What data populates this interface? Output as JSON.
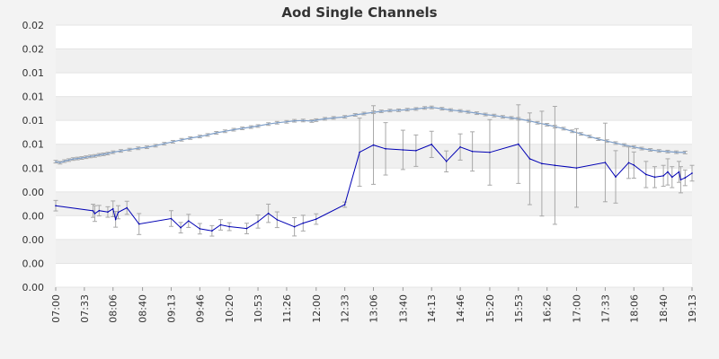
{
  "chart_data": {
    "type": "line",
    "title": "Aod Single Channels",
    "xlabel": "",
    "ylabel": "",
    "x_ticks": [
      "07:00",
      "07:33",
      "08:06",
      "08:40",
      "09:13",
      "09:46",
      "10:20",
      "10:53",
      "11:26",
      "12:00",
      "12:33",
      "13:06",
      "13:40",
      "14:13",
      "14:46",
      "15:20",
      "15:53",
      "16:26",
      "17:00",
      "17:33",
      "18:06",
      "18:40",
      "19:13"
    ],
    "y_ticks": [
      "0.00",
      "0.00",
      "0.00",
      "0.00",
      "0.00",
      "0.01",
      "0.01",
      "0.01",
      "0.01",
      "0.01",
      "0.02",
      "0.02"
    ],
    "x_range": [
      "07:00",
      "19:13"
    ],
    "ylim": [
      0,
      0.02
    ],
    "grid": "horizontal bands",
    "legend": "none",
    "series": [
      {
        "color": "#7f9fc8",
        "points": [
          [
            "07:00",
            0.00958,
            0.0001
          ],
          [
            "07:05",
            0.0095,
            0.0001
          ],
          [
            "07:10",
            0.00962,
            0.0001
          ],
          [
            "07:15",
            0.0097,
            0.0001
          ],
          [
            "07:20",
            0.00978,
            0.0001
          ],
          [
            "07:25",
            0.00982,
            0.0001
          ],
          [
            "07:30",
            0.00986,
            0.0001
          ],
          [
            "07:35",
            0.00992,
            0.0001
          ],
          [
            "07:40",
            0.00998,
            0.0001
          ],
          [
            "07:45",
            0.01002,
            0.0001
          ],
          [
            "07:50",
            0.0101,
            0.0001
          ],
          [
            "07:55",
            0.01014,
            0.0001
          ],
          [
            "08:00",
            0.0102,
            0.0001
          ],
          [
            "08:06",
            0.0103,
            0.0001
          ],
          [
            "08:15",
            0.0104,
            0.0001
          ],
          [
            "08:25",
            0.0105,
            0.0001
          ],
          [
            "08:35",
            0.0106,
            0.0001
          ],
          [
            "08:45",
            0.01068,
            0.0001
          ],
          [
            "08:55",
            0.0108,
            0.0001
          ],
          [
            "09:05",
            0.01095,
            0.0001
          ],
          [
            "09:15",
            0.0111,
            0.0001
          ],
          [
            "09:25",
            0.01125,
            0.0001
          ],
          [
            "09:35",
            0.01138,
            0.0001
          ],
          [
            "09:46",
            0.0115,
            0.0001
          ],
          [
            "09:55",
            0.01162,
            0.0001
          ],
          [
            "10:05",
            0.01178,
            0.0001
          ],
          [
            "10:15",
            0.0119,
            0.0001
          ],
          [
            "10:25",
            0.01202,
            0.0001
          ],
          [
            "10:35",
            0.01212,
            0.0001
          ],
          [
            "10:45",
            0.01222,
            0.0001
          ],
          [
            "10:53",
            0.0123,
            0.0001
          ],
          [
            "11:05",
            0.01245,
            0.0001
          ],
          [
            "11:15",
            0.01255,
            0.0001
          ],
          [
            "11:26",
            0.01262,
            0.0001
          ],
          [
            "11:35",
            0.0127,
            0.0001
          ],
          [
            "11:45",
            0.01272,
            0.0001
          ],
          [
            "11:55",
            0.01268,
            0.0001
          ],
          [
            "12:00",
            0.01275,
            0.0001
          ],
          [
            "12:10",
            0.01285,
            0.0001
          ],
          [
            "12:20",
            0.01292,
            0.0001
          ],
          [
            "12:33",
            0.013,
            0.0001
          ],
          [
            "12:45",
            0.01315,
            0.0001
          ],
          [
            "12:55",
            0.01325,
            0.0001
          ],
          [
            "13:06",
            0.01335,
            0.0001
          ],
          [
            "13:15",
            0.01342,
            0.0001
          ],
          [
            "13:25",
            0.01348,
            0.0001
          ],
          [
            "13:35",
            0.0135,
            0.0001
          ],
          [
            "13:45",
            0.01355,
            0.0001
          ],
          [
            "13:55",
            0.0136,
            0.0001
          ],
          [
            "14:05",
            0.01368,
            0.0001
          ],
          [
            "14:13",
            0.01372,
            0.0001
          ],
          [
            "14:25",
            0.01362,
            0.0001
          ],
          [
            "14:35",
            0.01352,
            0.0001
          ],
          [
            "14:46",
            0.01345,
            0.0001
          ],
          [
            "14:55",
            0.01338,
            0.0001
          ],
          [
            "15:05",
            0.01328,
            0.0001
          ],
          [
            "15:15",
            0.01318,
            0.0001
          ],
          [
            "15:25",
            0.0131,
            0.0001
          ],
          [
            "15:35",
            0.013,
            0.0001
          ],
          [
            "15:45",
            0.01292,
            0.0001
          ],
          [
            "15:53",
            0.01285,
            0.0001
          ],
          [
            "16:05",
            0.0127,
            0.0001
          ],
          [
            "16:15",
            0.01255,
            0.0001
          ],
          [
            "16:26",
            0.0124,
            0.0001
          ],
          [
            "16:35",
            0.01225,
            0.0001
          ],
          [
            "16:45",
            0.0121,
            0.0001
          ],
          [
            "16:55",
            0.0119,
            0.0001
          ],
          [
            "17:05",
            0.0117,
            0.0001
          ],
          [
            "17:15",
            0.0115,
            0.0001
          ],
          [
            "17:25",
            0.0113,
            0.0001
          ],
          [
            "17:35",
            0.01115,
            0.0001
          ],
          [
            "17:45",
            0.011,
            0.0001
          ],
          [
            "17:55",
            0.01085,
            0.0001
          ],
          [
            "18:06",
            0.0107,
            0.0001
          ],
          [
            "18:15",
            0.01058,
            0.0001
          ],
          [
            "18:25",
            0.01048,
            0.0001
          ],
          [
            "18:35",
            0.0104,
            0.0001
          ],
          [
            "18:45",
            0.01035,
            0.0001
          ],
          [
            "18:55",
            0.0103,
            0.0001
          ],
          [
            "19:05",
            0.01028,
            0.0001
          ]
        ]
      },
      {
        "color": "#0000b4",
        "points": [
          [
            "07:00",
            0.00622,
            0.0004
          ],
          [
            "07:43",
            0.00583,
            0.0005
          ],
          [
            "07:45",
            0.00562,
            0.0006
          ],
          [
            "07:50",
            0.00584,
            0.0004
          ],
          [
            "08:00",
            0.00574,
            0.0004
          ],
          [
            "08:06",
            0.00598,
            0.0006
          ],
          [
            "08:09",
            0.00518,
            0.0006
          ],
          [
            "08:12",
            0.00572,
            0.0005
          ],
          [
            "08:22",
            0.00606,
            0.0005
          ],
          [
            "08:36",
            0.00482,
            0.0008
          ],
          [
            "09:13",
            0.00524,
            0.0006
          ],
          [
            "09:24",
            0.00454,
            0.0004
          ],
          [
            "09:33",
            0.00506,
            0.0005
          ],
          [
            "09:46",
            0.00446,
            0.0004
          ],
          [
            "10:00",
            0.0043,
            0.0004
          ],
          [
            "10:10",
            0.00476,
            0.0004
          ],
          [
            "10:20",
            0.00462,
            0.0003
          ],
          [
            "10:40",
            0.00448,
            0.0004
          ],
          [
            "10:53",
            0.00501,
            0.0005
          ],
          [
            "11:05",
            0.00564,
            0.0007
          ],
          [
            "11:15",
            0.00515,
            0.0006
          ],
          [
            "11:35",
            0.00461,
            0.0007
          ],
          [
            "11:45",
            0.00489,
            0.0006
          ],
          [
            "12:00",
            0.0052,
            0.0004
          ],
          [
            "12:33",
            0.0063,
            0.0002
          ],
          [
            "12:50",
            0.0103,
            0.0026
          ],
          [
            "13:06",
            0.01085,
            0.003
          ],
          [
            "13:20",
            0.01056,
            0.002
          ],
          [
            "13:40",
            0.01048,
            0.0015
          ],
          [
            "13:55",
            0.01042,
            0.0012
          ],
          [
            "14:13",
            0.0109,
            0.001
          ],
          [
            "14:30",
            0.0096,
            0.0008
          ],
          [
            "14:46",
            0.0107,
            0.001
          ],
          [
            "15:00",
            0.01036,
            0.0015
          ],
          [
            "15:20",
            0.01029,
            0.0025
          ],
          [
            "15:53",
            0.01092,
            0.003
          ],
          [
            "16:06",
            0.0098,
            0.0035
          ],
          [
            "16:20",
            0.00943,
            0.004
          ],
          [
            "16:35",
            0.0093,
            0.0045
          ],
          [
            "17:00",
            0.0091,
            0.003
          ],
          [
            "17:33",
            0.00952,
            0.003
          ],
          [
            "17:45",
            0.00842,
            0.002
          ],
          [
            "18:00",
            0.0095,
            0.0012
          ],
          [
            "18:06",
            0.00932,
            0.001
          ],
          [
            "18:20",
            0.0086,
            0.001
          ],
          [
            "18:30",
            0.0084,
            0.0008
          ],
          [
            "18:40",
            0.0085,
            0.0008
          ],
          [
            "18:45",
            0.0088,
            0.001
          ],
          [
            "18:50",
            0.0084,
            0.0008
          ],
          [
            "18:58",
            0.0088,
            0.0008
          ],
          [
            "19:00",
            0.0082,
            0.001
          ],
          [
            "19:05",
            0.00835,
            0.0006
          ],
          [
            "19:13",
            0.0087,
            0.0006
          ]
        ]
      }
    ]
  }
}
